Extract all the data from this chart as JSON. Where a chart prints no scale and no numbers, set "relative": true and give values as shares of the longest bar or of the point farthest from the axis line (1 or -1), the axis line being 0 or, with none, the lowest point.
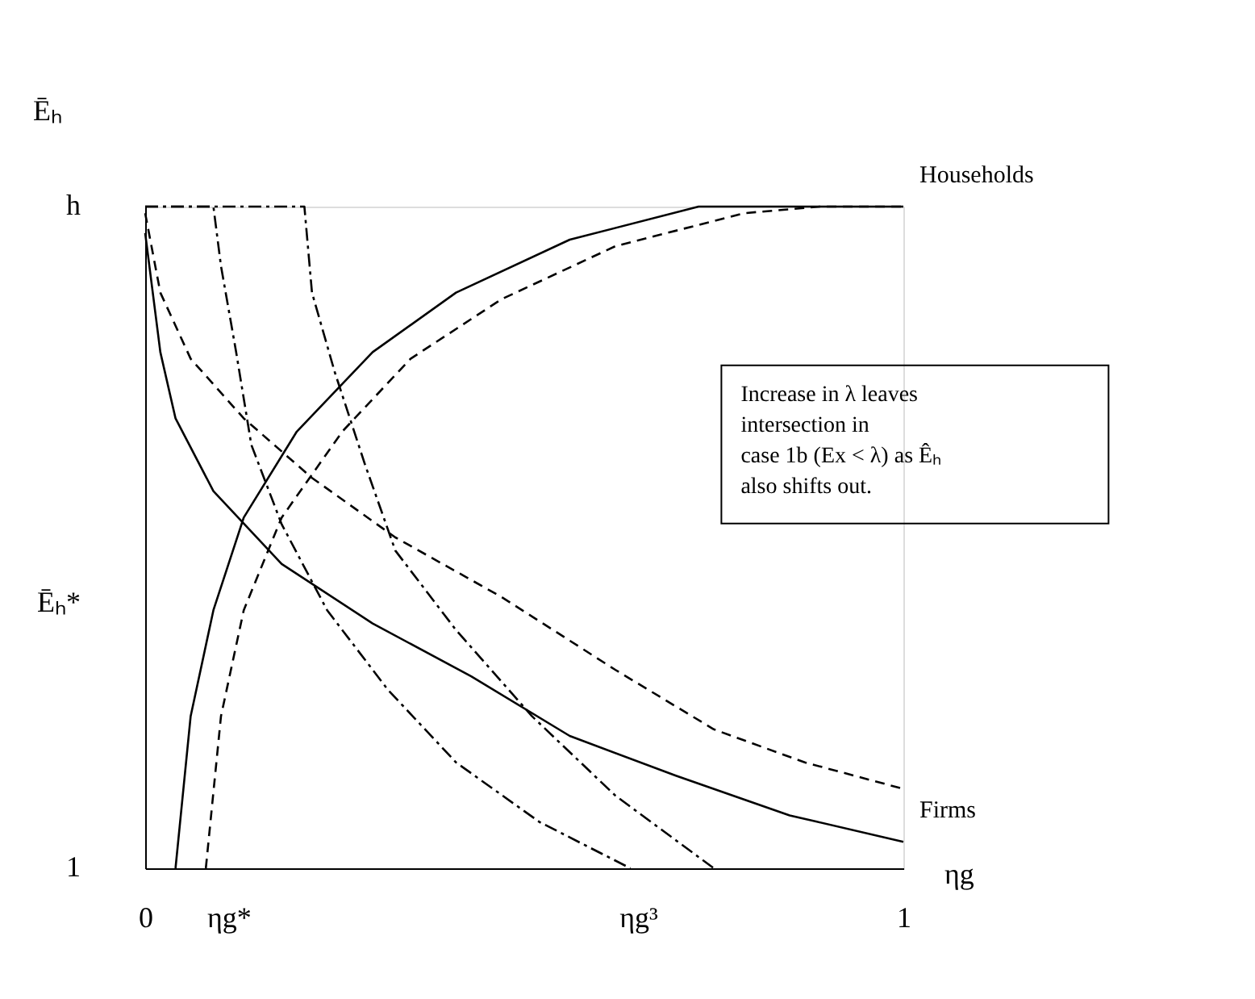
{
  "chart_data": {
    "type": "line",
    "ylabel": "Ēₕ",
    "xlabel": "ηg",
    "xlim": [
      0,
      1
    ],
    "xticks": [
      {
        "value": 0,
        "label": "0"
      },
      {
        "value": 0.11,
        "label": "ηg*"
      },
      {
        "value": 0.65,
        "label": "ηg³"
      },
      {
        "value": 1,
        "label": "1"
      }
    ],
    "relative": true,
    "grid": false,
    "marker": "none",
    "annotations": [
      "Increase in λ leaves\nintersection in\ncase 1b (Ex < λ) as Êₕ\nalso shifts out.",
      "1",
      "Ēₕ*",
      "h"
    ],
    "series": [
      {
        "name": "Households",
        "color": "#000000",
        "line_style": "solid",
        "x": [
          0.04,
          0.06,
          0.09,
          0.13,
          0.2,
          0.3,
          0.41,
          0.56,
          0.73,
          1
        ],
        "values": [
          0,
          0.23,
          0.39,
          0.53,
          0.66,
          0.78,
          0.87,
          0.95,
          1,
          1
        ]
      },
      {
        "color": "#000000",
        "line_style": "dashed",
        "x": [
          0.08,
          0.1,
          0.13,
          0.18,
          0.26,
          0.35,
          0.47,
          0.62,
          0.79,
          0.89,
          1
        ],
        "values": [
          0,
          0.23,
          0.39,
          0.53,
          0.66,
          0.77,
          0.86,
          0.94,
          0.99,
          1,
          1
        ]
      },
      {
        "name": "Firms",
        "color": "#000000",
        "line_style": "solid",
        "x": [
          0,
          0.02,
          0.04,
          0.09,
          0.18,
          0.3,
          0.43,
          0.56,
          0.7,
          0.85,
          1
        ],
        "values": [
          0.96,
          0.78,
          0.68,
          0.57,
          0.46,
          0.37,
          0.29,
          0.2,
          0.14,
          0.08,
          0.04
        ]
      },
      {
        "color": "#000000",
        "line_style": "dashed",
        "x": [
          0,
          0.02,
          0.06,
          0.13,
          0.22,
          0.33,
          0.47,
          0.62,
          0.75,
          0.87,
          1
        ],
        "values": [
          0.99,
          0.87,
          0.77,
          0.68,
          0.59,
          0.5,
          0.41,
          0.3,
          0.21,
          0.16,
          0.12
        ]
      },
      {
        "color": "#000000",
        "line_style": "dashdot",
        "x": [
          0,
          0.09,
          0.1,
          0.12,
          0.14,
          0.18,
          0.24,
          0.32,
          0.41,
          0.52,
          0.64
        ],
        "values": [
          1,
          1,
          0.91,
          0.78,
          0.64,
          0.52,
          0.39,
          0.27,
          0.16,
          0.07,
          0
        ]
      },
      {
        "color": "#000000",
        "line_style": "dashdot",
        "x": [
          0,
          0.21,
          0.22,
          0.25,
          0.29,
          0.33,
          0.41,
          0.51,
          0.62,
          0.75
        ],
        "values": [
          1,
          1,
          0.87,
          0.75,
          0.61,
          0.48,
          0.36,
          0.23,
          0.11,
          0
        ]
      }
    ]
  }
}
